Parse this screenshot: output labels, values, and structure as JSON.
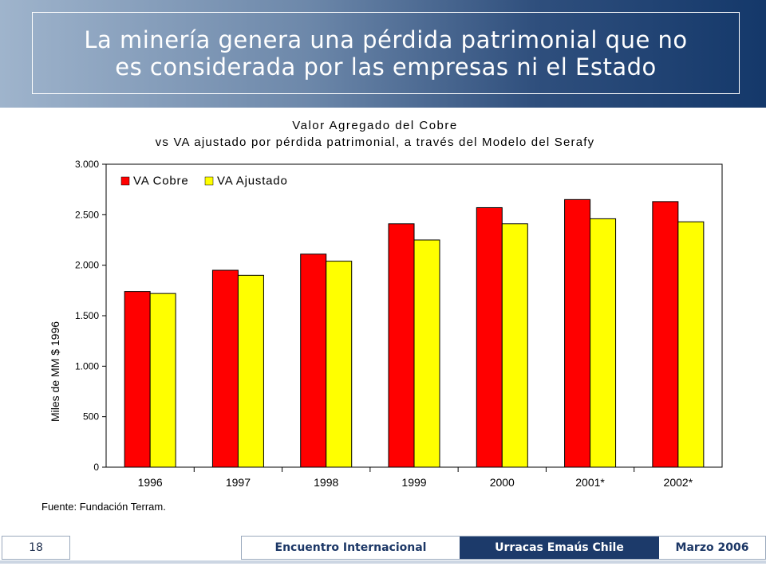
{
  "slide": {
    "title": "La minería genera una pérdida patrimonial que no\nes considerada por las empresas ni el Estado",
    "page_number": "18",
    "footer": {
      "left": "Encuentro Internacional",
      "center": "Urracas Emaús Chile",
      "right": "Marzo 2006"
    }
  },
  "chart_data": {
    "type": "bar",
    "title": "Valor Agregado del Cobre",
    "subtitle": "vs VA ajustado por pérdida patrimonial, a través del Modelo del Serafy",
    "ylabel": "Miles de MM $ 1996",
    "xlabel": "",
    "source": "Fuente: Fundación Terram.",
    "categories": [
      "1996",
      "1997",
      "1998",
      "1999",
      "2000",
      "2001*",
      "2002*"
    ],
    "series": [
      {
        "name": "VA Cobre",
        "color": "#ff0000",
        "values": [
          1740,
          1950,
          2110,
          2410,
          2570,
          2650,
          2630
        ]
      },
      {
        "name": "VA Ajustado",
        "color": "#ffff00",
        "values": [
          1720,
          1900,
          2040,
          2250,
          2410,
          2460,
          2430
        ]
      }
    ],
    "ylim": [
      0,
      3000
    ],
    "yticks": [
      0,
      500,
      1000,
      1500,
      2000,
      2500,
      3000
    ],
    "ytick_labels": [
      "0",
      "500",
      "1.000",
      "1.500",
      "2.000",
      "2.500",
      "3.000"
    ],
    "legend": "top-left",
    "grid": false
  }
}
